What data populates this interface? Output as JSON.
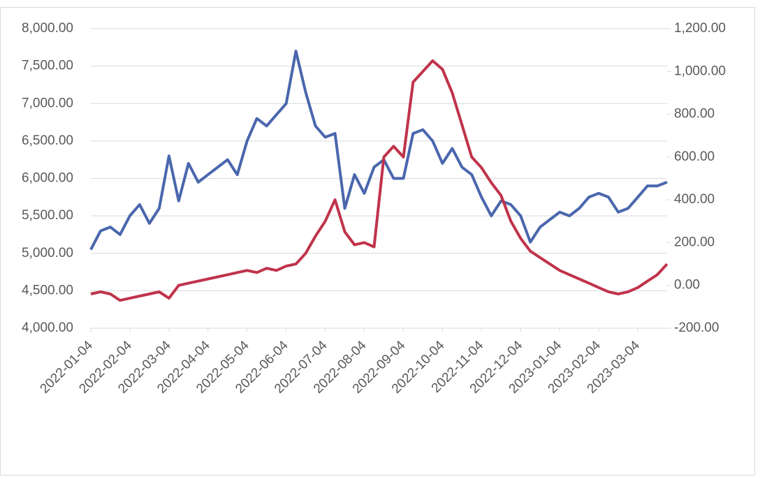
{
  "chart_data": {
    "type": "line",
    "categories": [
      "2022-01-04",
      null,
      null,
      null,
      "2022-02-04",
      null,
      null,
      null,
      "2022-03-04",
      null,
      null,
      null,
      "2022-04-04",
      null,
      null,
      null,
      "2022-05-04",
      null,
      null,
      null,
      "2022-06-04",
      null,
      null,
      null,
      "2022-07-04",
      null,
      null,
      null,
      "2022-08-04",
      null,
      null,
      null,
      "2022-09-04",
      null,
      null,
      null,
      "2022-10-04",
      null,
      null,
      null,
      "2022-11-04",
      null,
      null,
      null,
      "2022-12-04",
      null,
      null,
      null,
      "2023-01-04",
      null,
      null,
      null,
      "2023-02-04",
      null,
      null,
      null,
      "2023-03-04",
      null,
      null,
      null
    ],
    "series": [
      {
        "color": "#4a67ad",
        "values": [
          5050,
          5300,
          5350,
          5250,
          5500,
          5650,
          5400,
          5600,
          6300,
          5700,
          6200,
          5950,
          6050,
          6150,
          6250,
          6050,
          6500,
          6800,
          6700,
          6850,
          7000,
          7700,
          7150,
          6700,
          6550,
          6600,
          5600,
          6050,
          5800,
          6150,
          6250,
          6000,
          6000,
          6600,
          6650,
          6500,
          6200,
          6400,
          6150,
          6050,
          5750,
          5500,
          5700,
          5650,
          5500,
          5150,
          5350,
          5450,
          5550,
          5500,
          5600,
          5750,
          5800,
          5750,
          5550,
          5600,
          5750,
          5900,
          5900,
          5950
        ]
      },
      {
        "color": "#c0334b",
        "axis": "y2",
        "values": [
          -40,
          -30,
          -40,
          -70,
          -60,
          -50,
          -40,
          -30,
          -60,
          0,
          10,
          20,
          30,
          40,
          50,
          60,
          70,
          60,
          80,
          70,
          90,
          100,
          150,
          230,
          300,
          400,
          250,
          190,
          200,
          180,
          600,
          650,
          600,
          950,
          1000,
          1050,
          1010,
          900,
          750,
          600,
          550,
          480,
          420,
          300,
          220,
          160,
          130,
          100,
          70,
          50,
          30,
          10,
          -10,
          -30,
          -40,
          -30,
          -10,
          20,
          50,
          100
        ]
      }
    ],
    "ylim": [
      4000,
      8000
    ],
    "yticks": [
      {
        "value": 4000,
        "label": "4,000.00"
      },
      {
        "value": 4500,
        "label": "4,500.00"
      },
      {
        "value": 5000,
        "label": "5,000.00"
      },
      {
        "value": 5500,
        "label": "5,500.00"
      },
      {
        "value": 6000,
        "label": "6,000.00"
      },
      {
        "value": 6500,
        "label": "6,500.00"
      },
      {
        "value": 7000,
        "label": "7,000.00"
      },
      {
        "value": 7500,
        "label": "7,500.00"
      },
      {
        "value": 8000,
        "label": "8,000.00"
      }
    ],
    "y2lim": [
      -200,
      1200
    ],
    "y2ticks": [
      {
        "value": -200,
        "label": "-200.00"
      },
      {
        "value": 0,
        "label": "0.00"
      },
      {
        "value": 200,
        "label": "200.00"
      },
      {
        "value": 400,
        "label": "400.00"
      },
      {
        "value": 600,
        "label": "600.00"
      },
      {
        "value": 800,
        "label": "800.00"
      },
      {
        "value": 1000,
        "label": "1,000.00"
      },
      {
        "value": 1200,
        "label": "1,200.00"
      }
    ],
    "grid": true
  }
}
